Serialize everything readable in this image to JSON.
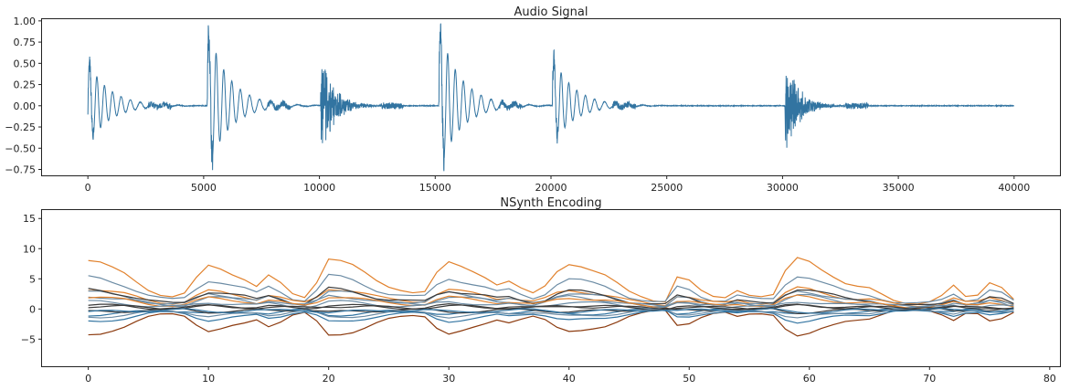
{
  "chart_data": [
    {
      "type": "line",
      "title": "Audio Signal",
      "xlabel": "",
      "ylabel": "",
      "xlim": [
        -1980,
        41980
      ],
      "ylim": [
        -0.82,
        1.02
      ],
      "x_ticks": [
        0,
        5000,
        10000,
        15000,
        20000,
        25000,
        30000,
        35000,
        40000
      ],
      "x_tick_labels": [
        "0",
        "5000",
        "10000",
        "15000",
        "20000",
        "25000",
        "30000",
        "35000",
        "40000"
      ],
      "y_ticks": [
        -0.75,
        -0.5,
        -0.25,
        0.0,
        0.25,
        0.5,
        0.75,
        1.0
      ],
      "y_tick_labels": [
        "−0.75",
        "−0.50",
        "−0.25",
        "0.00",
        "0.25",
        "0.50",
        "0.75",
        "1.00"
      ],
      "color": "#3274a1",
      "bursts": [
        {
          "start": 0,
          "amp_pos": 0.53,
          "amp_neg": -0.47,
          "type": "tonal"
        },
        {
          "start": 5150,
          "amp_pos": 0.95,
          "amp_neg": -0.77,
          "type": "tonal"
        },
        {
          "start": 10050,
          "amp_pos": 0.6,
          "amp_neg": -0.37,
          "type": "noisy"
        },
        {
          "start": 15150,
          "amp_pos": 0.95,
          "amp_neg": -0.77,
          "type": "tonal"
        },
        {
          "start": 20050,
          "amp_pos": 0.6,
          "amp_neg": -0.47,
          "type": "tonal"
        },
        {
          "start": 30100,
          "amp_pos": 0.6,
          "amp_neg": -0.42,
          "type": "noisy"
        }
      ],
      "duration": 40000
    },
    {
      "type": "line",
      "title": "NSynth Encoding",
      "xlabel": "",
      "ylabel": "",
      "xlim": [
        -3.85,
        80.85
      ],
      "ylim": [
        -9.5,
        16.4
      ],
      "x_ticks": [
        0,
        10,
        20,
        30,
        40,
        50,
        60,
        70,
        80
      ],
      "x_tick_labels": [
        "0",
        "10",
        "20",
        "30",
        "40",
        "50",
        "60",
        "70",
        "80"
      ],
      "y_ticks": [
        -5,
        0,
        5,
        10,
        15
      ],
      "y_tick_labels": [
        "−5",
        "0",
        "5",
        "10",
        "15"
      ],
      "n_points": 78,
      "series": [
        {
          "color": "#e1812c",
          "base": 0.0,
          "scale": 8.6,
          "offset": 6.7
        },
        {
          "color": "#6b8ba4",
          "base": 0.0,
          "scale": 5.4,
          "offset": 5.0
        },
        {
          "color": "#8c3b0f",
          "base": 0.0,
          "scale": -5.0,
          "offset": -2.4
        },
        {
          "color": "#e1812c",
          "base": 0.0,
          "scale": 3.2,
          "offset": 3.4
        },
        {
          "color": "#6b8ba4",
          "base": 0.0,
          "scale": 3.0,
          "offset": 2.5
        },
        {
          "color": "#3b3b3b",
          "base": 0.0,
          "scale": 3.3,
          "offset": 3.0
        },
        {
          "color": "#6b8ba4",
          "base": 0.0,
          "scale": 2.2,
          "offset": 2.0
        },
        {
          "color": "#e1812c",
          "base": 0.0,
          "scale": 2.0,
          "offset": 2.0
        },
        {
          "color": "#6b8ba4",
          "base": 0.0,
          "scale": 1.2,
          "offset": 1.2
        },
        {
          "color": "#3274a1",
          "base": 0.0,
          "scale": -2.2,
          "offset": -1.8
        },
        {
          "color": "#3274a1",
          "base": 0.0,
          "scale": -1.0,
          "offset": -0.8
        },
        {
          "color": "#3b3b3b",
          "base": 0.0,
          "scale": 0.8,
          "offset": 0.3
        },
        {
          "color": "#3b3b3b",
          "base": 0.0,
          "scale": -0.6,
          "offset": -0.3
        },
        {
          "color": "#6b8ba4",
          "base": 0.0,
          "scale": -1.4,
          "offset": -1.2
        },
        {
          "color": "#3b3b3b",
          "base": 0.0,
          "scale": 0.4,
          "offset": 0.6
        },
        {
          "color": "#3274a1",
          "base": 0.0,
          "scale": -0.5,
          "offset": -0.5
        }
      ],
      "envelope": [
        1.0,
        0.95,
        0.85,
        0.75,
        0.6,
        0.45,
        0.35,
        0.3,
        0.35,
        0.65,
        0.9,
        0.85,
        0.75,
        0.65,
        0.5,
        0.7,
        0.55,
        0.35,
        0.3,
        0.6,
        1.05,
        1.0,
        0.9,
        0.75,
        0.6,
        0.5,
        0.45,
        0.4,
        0.4,
        0.75,
        0.95,
        0.88,
        0.8,
        0.7,
        0.55,
        0.6,
        0.45,
        0.35,
        0.5,
        0.8,
        0.95,
        0.9,
        0.8,
        0.7,
        0.55,
        0.4,
        0.32,
        0.25,
        0.22,
        0.68,
        0.6,
        0.4,
        0.3,
        0.3,
        0.45,
        0.35,
        0.3,
        0.32,
        0.78,
        1.05,
        1.0,
        0.85,
        0.7,
        0.55,
        0.48,
        0.45,
        0.35,
        0.25,
        0.2,
        0.18,
        0.2,
        0.3,
        0.5,
        0.3,
        0.35,
        0.6,
        0.5,
        0.25
      ]
    }
  ]
}
